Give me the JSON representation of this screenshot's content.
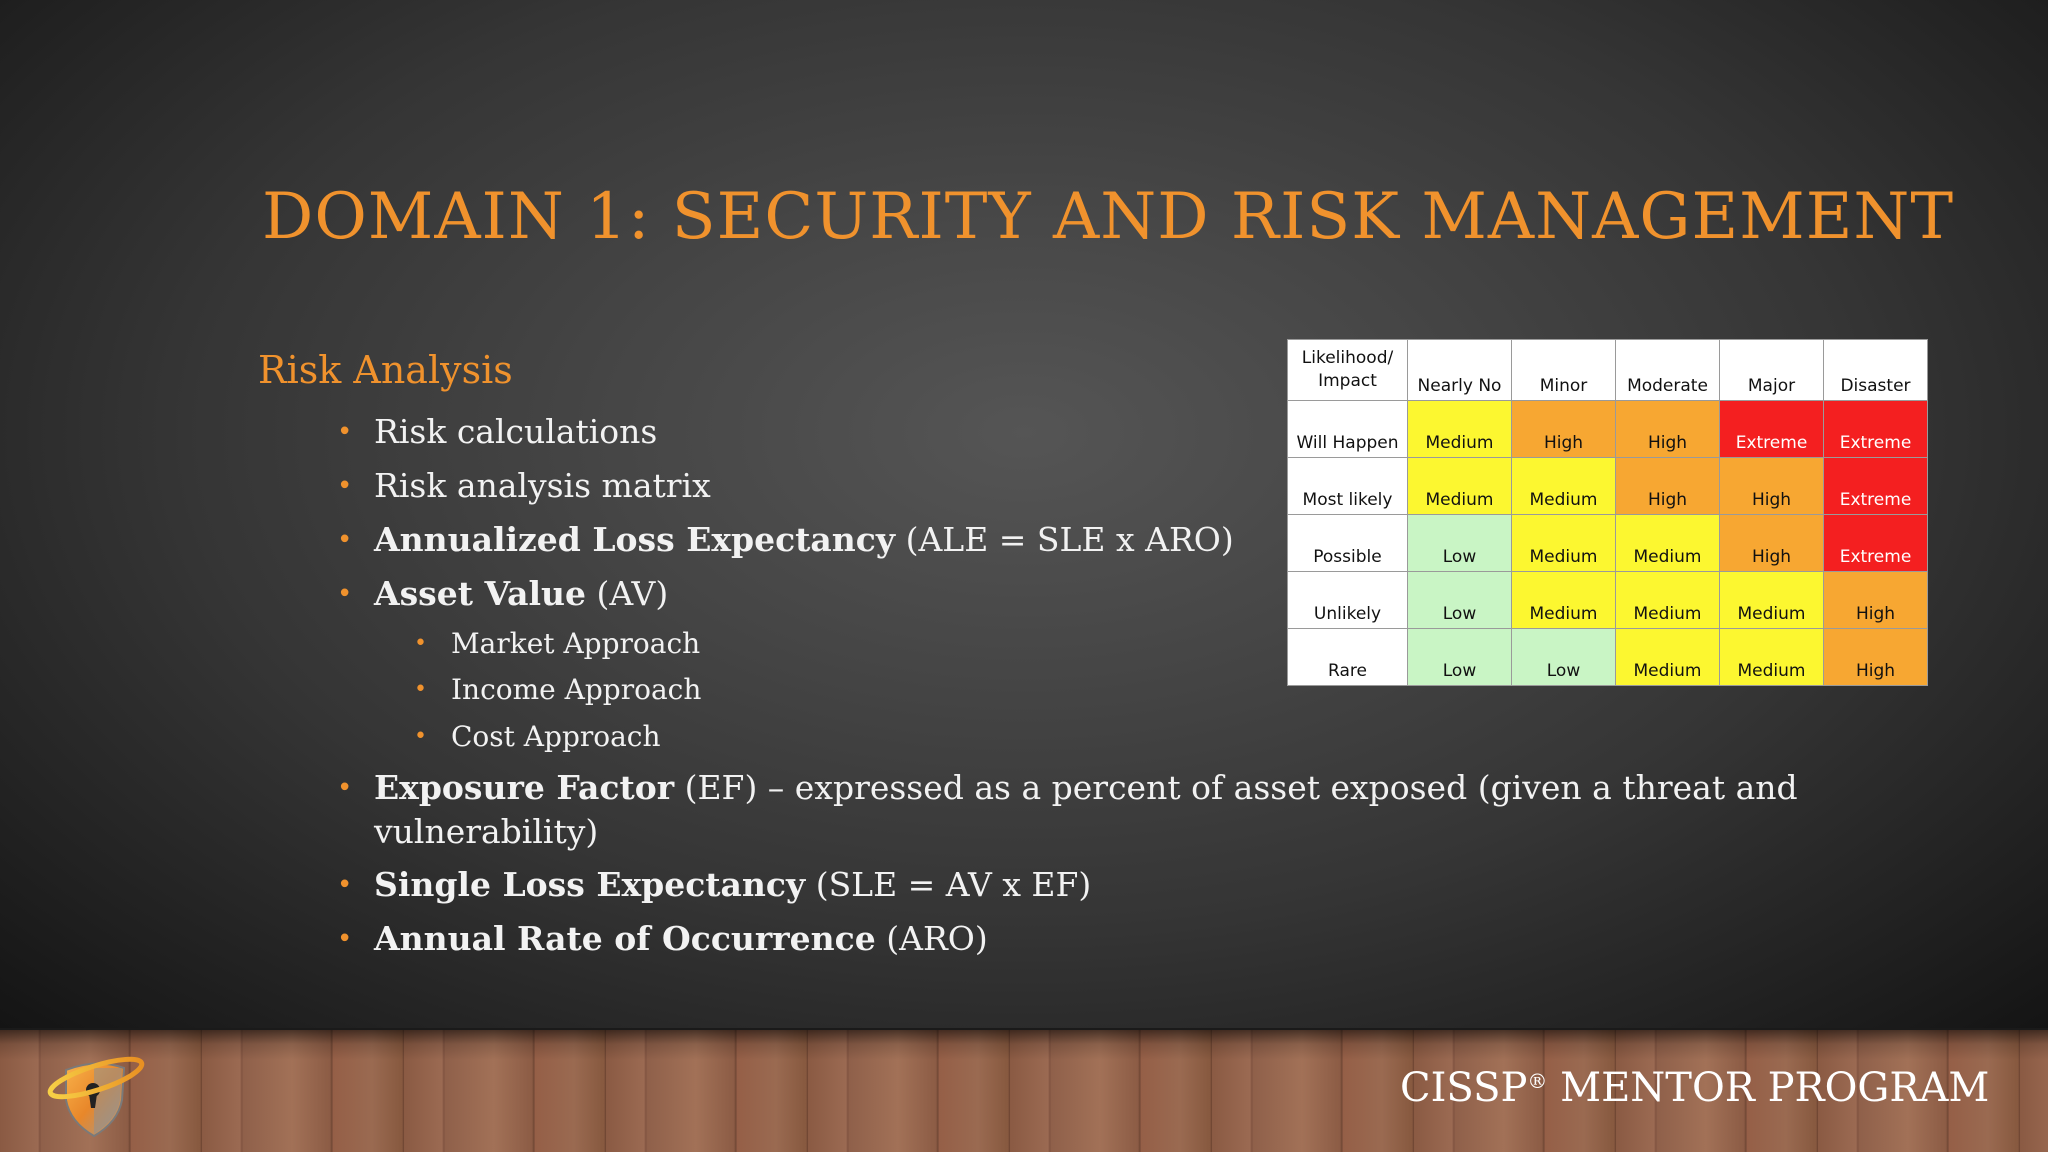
{
  "slide": {
    "title": "DOMAIN 1: SECURITY AND RISK MANAGEMENT",
    "section_heading": "Risk Analysis",
    "bullets": [
      {
        "bold": "",
        "text": "Risk calculations"
      },
      {
        "bold": "",
        "text": "Risk analysis matrix"
      },
      {
        "bold": "Annualized Loss Expectancy",
        "text": " (ALE = SLE x ARO)"
      },
      {
        "bold": "Asset Value",
        "text": " (AV)"
      },
      {
        "bold": "Exposure Factor",
        "text": " (EF) – expressed as a percent of asset exposed (given a threat and vulnerability)"
      },
      {
        "bold": "Single Loss Expectancy",
        "text": " (SLE = AV x EF)"
      },
      {
        "bold": "Annual Rate of Occurrence",
        "text": " (ARO)"
      }
    ],
    "sub_bullets": [
      "Market Approach",
      "Income Approach",
      "Cost Approach"
    ],
    "bullet_glyph": "•"
  },
  "matrix": {
    "corner_line1": "Likelihood/",
    "corner_line2": "Impact",
    "columns": [
      "Nearly No",
      "Minor",
      "Moderate",
      "Major",
      "Disaster"
    ],
    "rows": [
      {
        "label": "Will Happen",
        "cells": [
          "Medium",
          "High",
          "High",
          "Extreme",
          "Extreme"
        ]
      },
      {
        "label": "Most likely",
        "cells": [
          "Medium",
          "Medium",
          "High",
          "High",
          "Extreme"
        ]
      },
      {
        "label": "Possible",
        "cells": [
          "Low",
          "Medium",
          "Medium",
          "High",
          "Extreme"
        ]
      },
      {
        "label": "Unlikely",
        "cells": [
          "Low",
          "Medium",
          "Medium",
          "Medium",
          "High"
        ]
      },
      {
        "label": "Rare",
        "cells": [
          "Low",
          "Low",
          "Medium",
          "Medium",
          "High"
        ]
      }
    ],
    "level_colors": {
      "Low": "#c9f5c5",
      "Medium": "#fcf730",
      "High": "#f7a732",
      "Extreme": "#f41f20"
    }
  },
  "footer": {
    "brand_pre": "CISSP",
    "brand_reg": "®",
    "brand_post": " MENTOR PROGRAM"
  },
  "logo": {
    "icon": "shield-keyhole-logo-icon"
  },
  "colors": {
    "accent": "#f0922d",
    "text": "#f2f2f2"
  }
}
